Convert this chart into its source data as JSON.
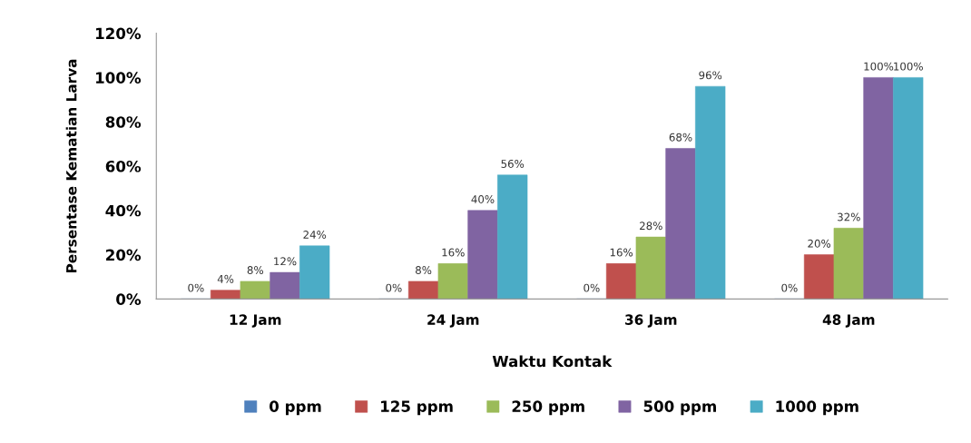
{
  "chart_data": {
    "type": "bar",
    "xlabel": "Waktu Kontak",
    "ylabel": "Persentase Kematian Larva",
    "categories": [
      "12 Jam",
      "24 Jam",
      "36 Jam",
      "48 Jam"
    ],
    "series": [
      {
        "name": "0 ppm",
        "color": "#4f81bd",
        "values": [
          0,
          0,
          0,
          0
        ],
        "value_labels": [
          "0%",
          "0%",
          "0%",
          "0%"
        ]
      },
      {
        "name": "125 ppm",
        "color": "#c0504d",
        "values": [
          4,
          8,
          16,
          20
        ],
        "value_labels": [
          "4%",
          "8%",
          "16%",
          "20%"
        ]
      },
      {
        "name": "250 ppm",
        "color": "#9bbb59",
        "values": [
          8,
          16,
          28,
          32
        ],
        "value_labels": [
          "8%",
          "16%",
          "28%",
          "32%"
        ]
      },
      {
        "name": "500 ppm",
        "color": "#8064a2",
        "values": [
          12,
          40,
          68,
          100
        ],
        "value_labels": [
          "12%",
          "40%",
          "68%",
          "100%"
        ]
      },
      {
        "name": "1000 ppm",
        "color": "#4bacc6",
        "values": [
          24,
          56,
          96,
          100
        ],
        "value_labels": [
          "24%",
          "56%",
          "96%",
          "100%"
        ]
      }
    ],
    "ylim": [
      0,
      120
    ],
    "yticks": [
      {
        "value": 0,
        "label": "0%"
      },
      {
        "value": 20,
        "label": "20%"
      },
      {
        "value": 40,
        "label": "40%"
      },
      {
        "value": 60,
        "label": "60%"
      },
      {
        "value": 80,
        "label": "80%"
      },
      {
        "value": 100,
        "label": "100%"
      },
      {
        "value": 120,
        "label": "120%"
      }
    ],
    "grid": false,
    "legend": "bottom"
  }
}
